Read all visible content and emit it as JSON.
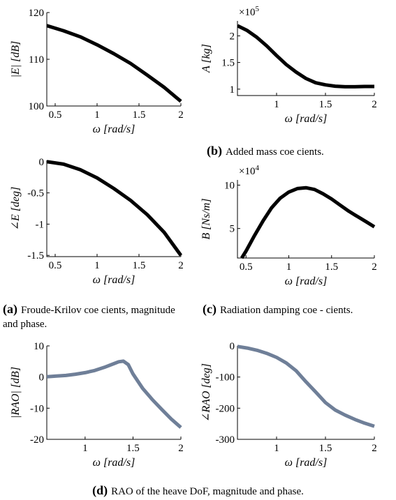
{
  "captions": {
    "a_tag": "(a)",
    "a_text": "Froude-Krilov coe cients, magnitude and phase.",
    "b_tag": "(b)",
    "b_text": "Added mass coe cients.",
    "c_tag": "(c)",
    "c_text": "Radiation damping coe - cients.",
    "d_tag": "(d)",
    "d_text": "RAO of the heave DoF, magnitude and phase."
  },
  "chart_data": [
    {
      "id": "E_mag",
      "type": "line",
      "xlabel": "ω [rad/s]",
      "ylabel": "|E| [dB]",
      "xlim": [
        0.4,
        2
      ],
      "ylim": [
        100,
        120
      ],
      "xticks": [
        "0.5",
        "1",
        "1.5",
        "2"
      ],
      "yticks": [
        "100",
        "110",
        "120"
      ],
      "color": "#000000",
      "series": [
        {
          "x": [
            0.4,
            0.6,
            0.8,
            1.0,
            1.2,
            1.4,
            1.6,
            1.8,
            2.0
          ],
          "y": [
            117.2,
            116.1,
            114.8,
            113.1,
            111.2,
            109.1,
            106.6,
            104.0,
            101.0
          ]
        }
      ]
    },
    {
      "id": "A",
      "type": "line",
      "xlabel": "ω [rad/s]",
      "ylabel": "A [kg]",
      "multiplier": "×10^5",
      "xlim": [
        0.6,
        2
      ],
      "ylim": [
        0.88,
        2.28
      ],
      "xticks": [
        "1",
        "1.5",
        "2"
      ],
      "yticks": [
        "1",
        "1.5",
        "2"
      ],
      "color": "#000000",
      "series": [
        {
          "x": [
            0.6,
            0.7,
            0.8,
            0.9,
            1.0,
            1.1,
            1.2,
            1.3,
            1.4,
            1.5,
            1.6,
            1.7,
            1.8,
            1.9,
            2.0
          ],
          "y": [
            2.19,
            2.1,
            1.97,
            1.81,
            1.63,
            1.46,
            1.32,
            1.2,
            1.12,
            1.08,
            1.055,
            1.045,
            1.045,
            1.05,
            1.05
          ]
        }
      ]
    },
    {
      "id": "E_phase",
      "type": "line",
      "xlabel": "ω [rad/s]",
      "ylabel": "∠E [deg]",
      "xlim": [
        0.4,
        2
      ],
      "ylim": [
        -1.52,
        0.02
      ],
      "xticks": [
        "0.5",
        "1",
        "1.5",
        "2"
      ],
      "yticks": [
        "0",
        "-0.5",
        "-1",
        "-1.5"
      ],
      "color": "#000000",
      "series": [
        {
          "x": [
            0.4,
            0.6,
            0.8,
            1.0,
            1.2,
            1.4,
            1.6,
            1.8,
            2.0
          ],
          "y": [
            0.0,
            -0.04,
            -0.13,
            -0.26,
            -0.43,
            -0.62,
            -0.85,
            -1.13,
            -1.5
          ]
        }
      ]
    },
    {
      "id": "B",
      "type": "line",
      "xlabel": "ω [rad/s]",
      "ylabel": "B [Ns/m]",
      "multiplier": "×10^4",
      "xlim": [
        0.4,
        2
      ],
      "ylim": [
        1.6,
        10.6
      ],
      "xticks": [
        "0.5",
        "1",
        "1.5",
        "2"
      ],
      "yticks": [
        "5",
        "10"
      ],
      "color": "#000000",
      "series": [
        {
          "x": [
            0.45,
            0.5,
            0.6,
            0.7,
            0.8,
            0.9,
            1.0,
            1.1,
            1.2,
            1.3,
            1.4,
            1.5,
            1.6,
            1.7,
            1.8,
            1.9,
            2.0
          ],
          "y": [
            1.6,
            2.4,
            4.2,
            5.9,
            7.4,
            8.5,
            9.2,
            9.6,
            9.7,
            9.5,
            9.0,
            8.4,
            7.7,
            7.0,
            6.4,
            5.8,
            5.2
          ]
        }
      ]
    },
    {
      "id": "RAO_mag",
      "type": "line",
      "xlabel": "ω [rad/s]",
      "ylabel": "|RAO| [dB]",
      "xlim": [
        0.6,
        2
      ],
      "ylim": [
        -20,
        10
      ],
      "xticks": [
        "1",
        "1.5",
        "2"
      ],
      "yticks": [
        "-20",
        "-10",
        "0",
        "10"
      ],
      "color": "#6f7f98",
      "series": [
        {
          "x": [
            0.6,
            0.7,
            0.8,
            0.9,
            1.0,
            1.1,
            1.2,
            1.3,
            1.35,
            1.4,
            1.45,
            1.5,
            1.6,
            1.7,
            1.8,
            1.9,
            2.0
          ],
          "y": [
            0.1,
            0.3,
            0.5,
            0.9,
            1.4,
            2.1,
            3.1,
            4.3,
            4.9,
            5.1,
            4.0,
            1.0,
            -3.6,
            -7.2,
            -10.4,
            -13.5,
            -16.2
          ]
        }
      ]
    },
    {
      "id": "RAO_phase",
      "type": "line",
      "xlabel": "ω [rad/s]",
      "ylabel": "∠RAO [deg]",
      "xlim": [
        0.6,
        2
      ],
      "ylim": [
        -300,
        0
      ],
      "xticks": [
        "1",
        "1.5",
        "2"
      ],
      "yticks": [
        "-300",
        "-200",
        "-100",
        "0"
      ],
      "color": "#6f7f98",
      "series": [
        {
          "x": [
            0.6,
            0.7,
            0.8,
            0.9,
            1.0,
            1.1,
            1.2,
            1.3,
            1.4,
            1.5,
            1.6,
            1.7,
            1.8,
            1.9,
            2.0
          ],
          "y": [
            -2,
            -7,
            -14,
            -24,
            -37,
            -55,
            -80,
            -115,
            -148,
            -182,
            -206,
            -222,
            -236,
            -248,
            -258
          ]
        }
      ]
    }
  ]
}
